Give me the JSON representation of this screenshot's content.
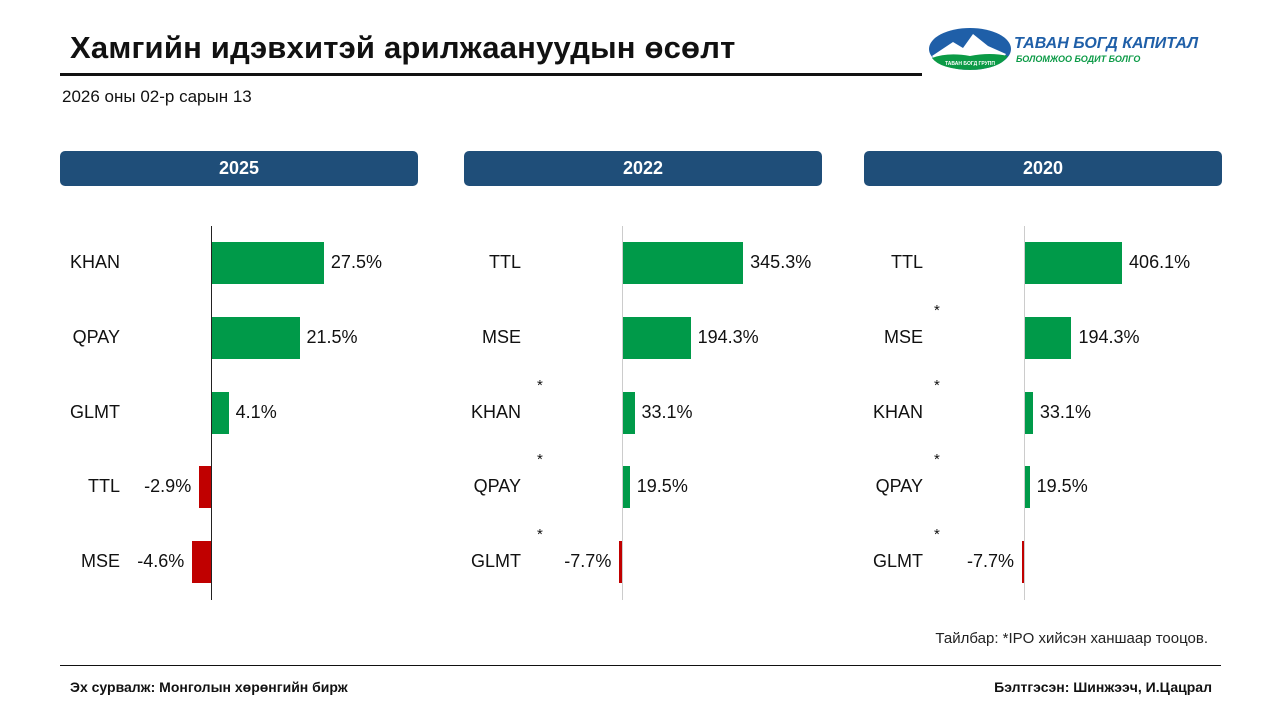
{
  "header": {
    "title": "Хамгийн идэвхитэй арилжаануудын өсөлт",
    "date": "2026 оны 02-р сарын 13"
  },
  "logo": {
    "name": "ТАВАН БОГД КАПИТАЛ",
    "slogan": "БОЛОМЖОО БОДИТ БОЛГО",
    "badge": "ТАВАН БОГД ГРУПП"
  },
  "colors": {
    "positive": "#009a49",
    "negative": "#c00000",
    "header": "#1f4e79"
  },
  "chart_data": [
    {
      "type": "bar",
      "title": "2025",
      "unit": "%",
      "categories": [
        "KHAN",
        "QPAY",
        "GLMT",
        "TTL",
        "MSE"
      ],
      "values": [
        27.5,
        21.5,
        4.1,
        -2.9,
        -4.6
      ],
      "ipo": [
        false,
        false,
        false,
        false,
        false
      ],
      "labels": [
        "27.5%",
        "21.5%",
        "4.1%",
        "-2.9%",
        "-4.6%"
      ]
    },
    {
      "type": "bar",
      "title": "2022",
      "unit": "%",
      "categories": [
        "TTL",
        "MSE",
        "KHAN",
        "QPAY",
        "GLMT"
      ],
      "values": [
        345.3,
        194.3,
        33.1,
        19.5,
        -7.7
      ],
      "ipo": [
        false,
        false,
        true,
        true,
        true
      ],
      "labels": [
        "345.3%",
        "194.3%",
        "33.1%",
        "19.5%",
        "-7.7%"
      ]
    },
    {
      "type": "bar",
      "title": "2020",
      "unit": "%",
      "categories": [
        "TTL",
        "MSE",
        "KHAN",
        "QPAY",
        "GLMT"
      ],
      "values": [
        406.1,
        194.3,
        33.1,
        19.5,
        -7.7
      ],
      "ipo": [
        false,
        true,
        true,
        true,
        true
      ],
      "labels": [
        "406.1%",
        "194.3%",
        "33.1%",
        "19.5%",
        "-7.7%"
      ]
    }
  ],
  "footer": {
    "note": "Тайлбар: *IPO хийсэн ханшаар тооцов.",
    "source": "Эх сурвалж: Монголын хөрөнгийн бирж",
    "author": "Бэлтгэсэн: Шинжээч, И.Цацрал",
    "star": "*"
  }
}
